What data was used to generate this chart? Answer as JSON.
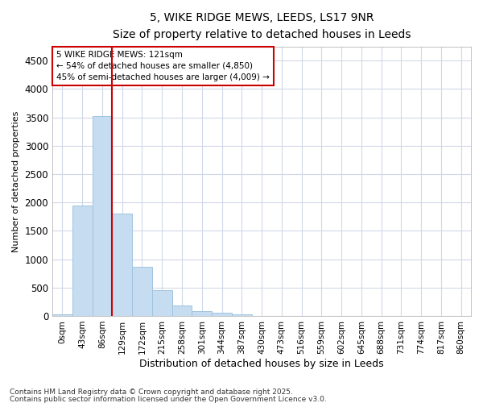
{
  "title_line1": "5, WIKE RIDGE MEWS, LEEDS, LS17 9NR",
  "title_line2": "Size of property relative to detached houses in Leeds",
  "xlabel": "Distribution of detached houses by size in Leeds",
  "ylabel": "Number of detached properties",
  "bar_color": "#c6dcf0",
  "bar_edge_color": "#a0c4e0",
  "background_color": "#ffffff",
  "grid_color": "#d0d8e8",
  "bin_labels": [
    "0sqm",
    "43sqm",
    "86sqm",
    "129sqm",
    "172sqm",
    "215sqm",
    "258sqm",
    "301sqm",
    "344sqm",
    "387sqm",
    "430sqm",
    "473sqm",
    "516sqm",
    "559sqm",
    "602sqm",
    "645sqm",
    "688sqm",
    "731sqm",
    "774sqm",
    "817sqm",
    "860sqm"
  ],
  "bar_values": [
    30,
    1950,
    3530,
    1800,
    870,
    450,
    185,
    90,
    50,
    30,
    0,
    0,
    0,
    0,
    0,
    0,
    0,
    0,
    0,
    0,
    0
  ],
  "ylim": [
    0,
    4750
  ],
  "yticks": [
    0,
    500,
    1000,
    1500,
    2000,
    2500,
    3000,
    3500,
    4000,
    4500
  ],
  "marker_bin_index": 3,
  "marker_label_line1": "5 WIKE RIDGE MEWS: 121sqm",
  "marker_label_line2": "← 54% of detached houses are smaller (4,850)",
  "marker_label_line3": "45% of semi-detached houses are larger (4,009) →",
  "annotation_box_color": "#cc0000",
  "footer_line1": "Contains HM Land Registry data © Crown copyright and database right 2025.",
  "footer_line2": "Contains public sector information licensed under the Open Government Licence v3.0."
}
